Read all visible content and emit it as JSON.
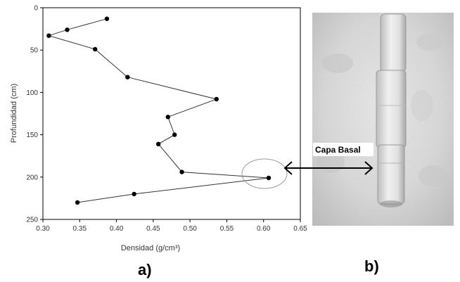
{
  "chart_data": {
    "type": "line",
    "xlabel": "Densidad (g/cm³)",
    "ylabel": "Profundidad (cm)",
    "xlim": [
      0.3,
      0.65
    ],
    "ylim": [
      0,
      250
    ],
    "y_inverted": true,
    "x_ticks": [
      "0.30",
      "0.35",
      "0.40",
      "0.45",
      "0.50",
      "0.55",
      "0.60",
      "0.65"
    ],
    "y_ticks": [
      "0",
      "50",
      "100",
      "150",
      "200",
      "250"
    ],
    "grid": false,
    "marker": "circle",
    "line_color": "#333333",
    "series": [
      {
        "x": [
          0.387,
          0.333,
          0.308,
          0.371,
          0.415,
          0.536,
          0.47,
          0.479,
          0.457,
          0.489,
          0.607,
          0.424,
          0.347
        ],
        "y": [
          13,
          26,
          33,
          49,
          82,
          108,
          129,
          150,
          161,
          194,
          201,
          220,
          230
        ]
      }
    ],
    "highlight_point_index": 10
  },
  "panel_labels": {
    "a": "a)",
    "b": "b)"
  },
  "photo": {
    "annotation_label": "Capa Basal"
  }
}
